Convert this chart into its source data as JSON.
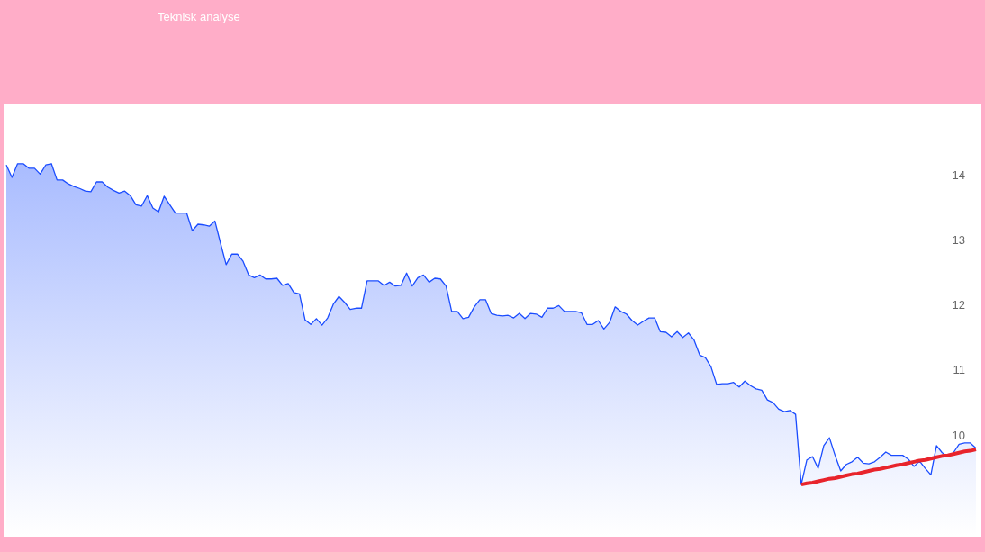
{
  "chart_data": {
    "type": "area",
    "title": "Teknisk analyse",
    "categories": [
      null,
      null,
      null,
      null,
      null,
      null,
      null,
      null,
      null,
      null,
      null,
      null,
      null,
      null,
      null,
      null,
      null,
      null,
      null,
      null,
      null,
      null,
      null,
      null,
      null,
      null,
      null,
      null,
      null,
      null,
      null,
      null,
      null,
      null,
      null,
      null,
      null,
      null,
      null,
      null,
      null,
      null,
      null,
      null,
      null,
      null,
      null,
      null,
      null,
      null,
      null,
      null,
      null,
      null,
      null,
      null,
      null,
      null,
      null,
      null,
      null,
      null,
      null,
      null,
      null,
      null,
      null,
      null,
      null,
      null,
      null,
      null,
      null,
      null,
      null,
      null,
      null,
      null,
      null,
      null,
      null,
      null,
      null,
      null,
      null,
      null,
      null,
      null,
      null,
      null,
      null,
      null,
      null,
      null,
      null,
      null,
      null,
      null,
      null,
      null,
      null,
      null,
      null,
      null,
      null,
      null,
      null,
      null,
      null,
      null,
      null,
      null,
      null,
      null,
      null,
      null,
      null,
      null,
      null,
      null,
      null,
      null,
      null,
      null,
      null,
      null,
      null,
      null,
      null,
      null,
      null,
      null,
      null,
      null,
      null,
      null,
      null,
      null,
      null,
      null,
      null,
      null,
      null,
      null,
      null,
      null,
      null,
      null,
      null,
      null,
      null,
      null,
      null,
      null,
      null,
      null,
      null,
      null,
      null,
      null,
      null,
      null,
      null,
      null,
      null,
      null,
      null,
      null,
      null,
      null,
      null,
      null,
      null
    ],
    "series": [
      {
        "color": "#1a4cff",
        "values": [
          14.15,
          13.96,
          14.17,
          14.17,
          14.1,
          14.1,
          14.01,
          14.15,
          14.17,
          13.92,
          13.92,
          13.86,
          13.82,
          13.79,
          13.75,
          13.74,
          13.89,
          13.89,
          13.81,
          13.76,
          13.72,
          13.75,
          13.68,
          13.54,
          13.52,
          13.68,
          13.49,
          13.43,
          13.67,
          13.54,
          13.41,
          13.41,
          13.41,
          13.14,
          13.24,
          13.23,
          13.21,
          13.29,
          12.95,
          12.62,
          12.78,
          12.78,
          12.67,
          12.46,
          12.42,
          12.46,
          12.4,
          12.4,
          12.41,
          12.3,
          12.33,
          12.19,
          12.17,
          11.77,
          11.7,
          11.79,
          11.69,
          11.8,
          12.01,
          12.13,
          12.04,
          11.93,
          11.95,
          11.95,
          12.37,
          12.37,
          12.37,
          12.3,
          12.35,
          12.29,
          12.3,
          12.49,
          12.29,
          12.42,
          12.46,
          12.35,
          12.41,
          12.4,
          12.29,
          11.9,
          11.9,
          11.79,
          11.81,
          11.97,
          12.08,
          12.08,
          11.87,
          11.84,
          11.83,
          11.84,
          11.8,
          11.87,
          11.79,
          11.87,
          11.86,
          11.81,
          11.95,
          11.95,
          11.99,
          11.9,
          11.9,
          11.9,
          11.88,
          11.7,
          11.7,
          11.76,
          11.63,
          11.73,
          11.97,
          11.9,
          11.86,
          11.76,
          11.69,
          11.75,
          11.8,
          11.8,
          11.59,
          11.58,
          11.51,
          11.59,
          11.5,
          11.57,
          11.46,
          11.23,
          11.19,
          11.05,
          10.78,
          10.79,
          10.79,
          10.81,
          10.74,
          10.83,
          10.76,
          10.71,
          10.69,
          10.54,
          10.5,
          10.4,
          10.36,
          10.38,
          10.32,
          9.24,
          9.62,
          9.67,
          9.49,
          9.84,
          9.96,
          9.69,
          9.45,
          9.55,
          9.59,
          9.66,
          9.57,
          9.56,
          9.59,
          9.66,
          9.74,
          9.69,
          9.69,
          9.69,
          9.63,
          9.52,
          9.6,
          9.49,
          9.39,
          9.84,
          9.73,
          9.67,
          9.73,
          9.86,
          9.88,
          9.88,
          9.8
        ]
      },
      {
        "type": "line",
        "color": "#e8242c",
        "values": [
          null,
          null,
          null,
          null,
          null,
          null,
          null,
          null,
          null,
          null,
          null,
          null,
          null,
          null,
          null,
          null,
          null,
          null,
          null,
          null,
          null,
          null,
          null,
          null,
          null,
          null,
          null,
          null,
          null,
          null,
          null,
          null,
          null,
          null,
          null,
          null,
          null,
          null,
          null,
          null,
          null,
          null,
          null,
          null,
          null,
          null,
          null,
          null,
          null,
          null,
          null,
          null,
          null,
          null,
          null,
          null,
          null,
          null,
          null,
          null,
          null,
          null,
          null,
          null,
          null,
          null,
          null,
          null,
          null,
          null,
          null,
          null,
          null,
          null,
          null,
          null,
          null,
          null,
          null,
          null,
          null,
          null,
          null,
          null,
          null,
          null,
          null,
          null,
          null,
          null,
          null,
          null,
          null,
          null,
          null,
          null,
          null,
          null,
          null,
          null,
          null,
          null,
          null,
          null,
          null,
          null,
          null,
          null,
          null,
          null,
          null,
          null,
          null,
          null,
          null,
          null,
          null,
          null,
          null,
          null,
          null,
          null,
          null,
          null,
          null,
          null,
          null,
          null,
          null,
          null,
          null,
          null,
          null,
          null,
          null,
          null,
          null,
          null,
          null,
          null,
          null,
          9.24,
          9.26,
          9.27,
          9.29,
          9.31,
          9.33,
          9.34,
          9.36,
          9.38,
          9.4,
          9.41,
          9.43,
          9.45,
          9.47,
          9.48,
          9.5,
          9.52,
          9.54,
          9.55,
          9.57,
          9.59,
          9.61,
          9.62,
          9.64,
          9.66,
          9.68,
          9.69,
          9.71,
          9.73,
          9.75,
          9.76,
          9.78
        ]
      }
    ],
    "ylim": [
      8.44,
      15.08
    ],
    "yticks": [
      10,
      11,
      12,
      13,
      14
    ],
    "grid": false,
    "tick_labels": "y"
  }
}
